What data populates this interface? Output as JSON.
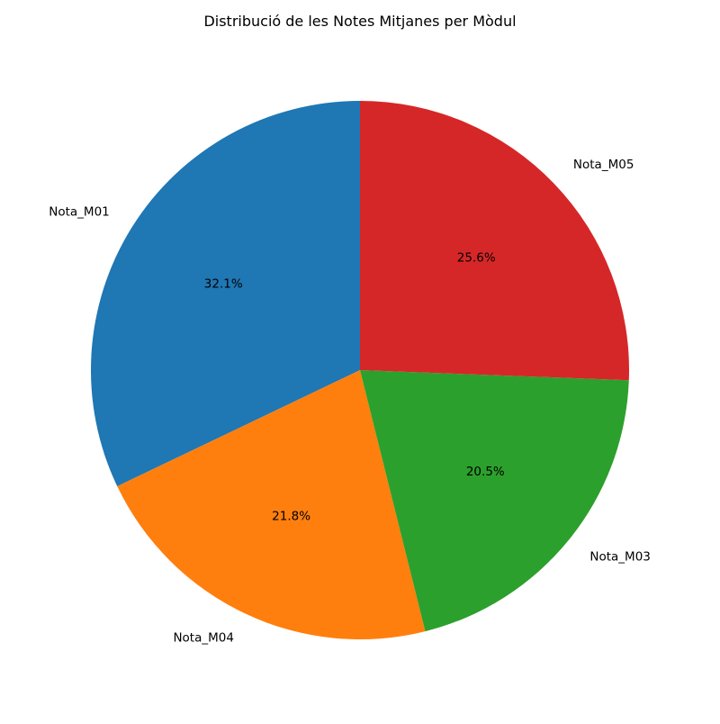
{
  "chart_data": {
    "type": "pie",
    "title": "Distribució de les Notes Mitjanes per Mòdul",
    "slices": [
      {
        "label": "Nota_M01",
        "percent": 32.1,
        "pct_text": "32.1%",
        "color": "#1f77b4"
      },
      {
        "label": "Nota_M04",
        "percent": 21.8,
        "pct_text": "21.8%",
        "color": "#ff7f0e"
      },
      {
        "label": "Nota_M03",
        "percent": 20.5,
        "pct_text": "20.5%",
        "color": "#2ca02c"
      },
      {
        "label": "Nota_M05",
        "percent": 25.6,
        "pct_text": "25.6%",
        "color": "#d62728"
      }
    ],
    "start_angle_deg": 90,
    "direction": "counterclockwise",
    "legend": "none"
  }
}
